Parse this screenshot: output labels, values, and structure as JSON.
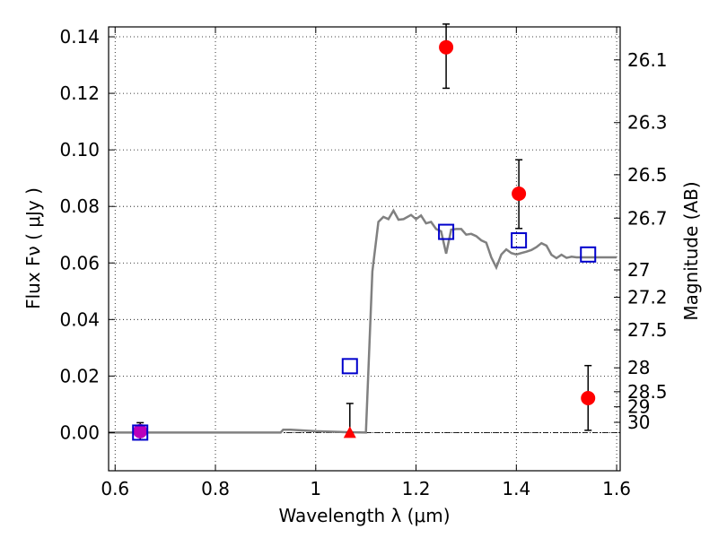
{
  "chart_data": {
    "type": "scatter",
    "title": "",
    "xlabel": "Wavelength  λ (μm)",
    "ylabel": "Flux  Fν  ( μJy )",
    "y2label": "Magnitude (AB)",
    "xlim": [
      0.587,
      1.607
    ],
    "ylim": [
      -0.0135,
      0.1435
    ],
    "grid": true,
    "x_ticks": [
      {
        "value": 0.6,
        "label": "0.6"
      },
      {
        "value": 0.8,
        "label": "0.8"
      },
      {
        "value": 1.0,
        "label": "1"
      },
      {
        "value": 1.2,
        "label": "1.2"
      },
      {
        "value": 1.4,
        "label": "1.4"
      },
      {
        "value": 1.6,
        "label": "1.6"
      }
    ],
    "y_ticks": [
      {
        "value": 0.0,
        "label": "0.00"
      },
      {
        "value": 0.02,
        "label": "0.02"
      },
      {
        "value": 0.04,
        "label": "0.04"
      },
      {
        "value": 0.06,
        "label": "0.06"
      },
      {
        "value": 0.08,
        "label": "0.08"
      },
      {
        "value": 0.1,
        "label": "0.10"
      },
      {
        "value": 0.12,
        "label": "0.12"
      },
      {
        "value": 0.14,
        "label": "0.14"
      }
    ],
    "y2_ticks": [
      {
        "value": 26.1,
        "label": "26.1"
      },
      {
        "value": 26.3,
        "label": "26.3"
      },
      {
        "value": 26.5,
        "label": "26.5"
      },
      {
        "value": 26.7,
        "label": "26.7"
      },
      {
        "value": 27.0,
        "label": "27"
      },
      {
        "value": 27.2,
        "label": "27.2"
      },
      {
        "value": 27.5,
        "label": "27.5"
      },
      {
        "value": 28.0,
        "label": "28"
      },
      {
        "value": 28.5,
        "label": "28.5"
      },
      {
        "value": 29.0,
        "label": "29"
      },
      {
        "value": 30.0,
        "label": "30"
      }
    ],
    "model_curve": {
      "color": "#808080",
      "x": [
        0.587,
        0.93,
        0.935,
        0.95,
        1.0,
        1.05,
        1.1,
        1.113,
        1.125,
        1.135,
        1.145,
        1.155,
        1.165,
        1.175,
        1.19,
        1.2,
        1.21,
        1.22,
        1.23,
        1.24,
        1.25,
        1.26,
        1.27,
        1.28,
        1.29,
        1.3,
        1.31,
        1.32,
        1.33,
        1.34,
        1.35,
        1.36,
        1.37,
        1.38,
        1.39,
        1.4,
        1.41,
        1.42,
        1.43,
        1.44,
        1.45,
        1.46,
        1.47,
        1.48,
        1.49,
        1.5,
        1.51,
        1.52,
        1.53,
        1.54,
        1.55,
        1.56,
        1.57,
        1.58,
        1.59,
        1.6
      ],
      "y": [
        0.0,
        0.0,
        0.001,
        0.001,
        0.0005,
        0.0002,
        0.0,
        0.057,
        0.0745,
        0.0763,
        0.0755,
        0.0785,
        0.0753,
        0.0755,
        0.077,
        0.0755,
        0.0768,
        0.074,
        0.0745,
        0.072,
        0.0712,
        0.0633,
        0.0718,
        0.072,
        0.072,
        0.07,
        0.0703,
        0.0695,
        0.068,
        0.0672,
        0.062,
        0.0584,
        0.063,
        0.0648,
        0.0635,
        0.063,
        0.0635,
        0.064,
        0.0646,
        0.0656,
        0.067,
        0.0661,
        0.0629,
        0.0617,
        0.0629,
        0.0618,
        0.0622,
        0.062,
        0.062,
        0.062,
        0.062,
        0.062,
        0.062,
        0.062,
        0.062,
        0.062
      ]
    },
    "series": [
      {
        "marker": "square",
        "color": "#0000cc",
        "points": [
          {
            "x": 0.65,
            "y": 0.0
          },
          {
            "x": 1.068,
            "y": 0.0235
          },
          {
            "x": 1.26,
            "y": 0.071
          },
          {
            "x": 1.405,
            "y": 0.068
          },
          {
            "x": 1.543,
            "y": 0.063
          }
        ]
      },
      {
        "marker": "circle",
        "color": "#ff0000",
        "points": [
          {
            "x": 1.26,
            "y": 0.1363,
            "err_low": 0.1218,
            "err_high": 0.1445
          },
          {
            "x": 1.405,
            "y": 0.0845,
            "err_low": 0.0722,
            "err_high": 0.0965
          },
          {
            "x": 1.543,
            "y": 0.0122,
            "err_low": 0.0008,
            "err_high": 0.0237
          }
        ]
      },
      {
        "marker": "circle",
        "color": "#bb00bb",
        "points": [
          {
            "x": 0.65,
            "y": 0.0005,
            "err_low": -0.0025,
            "err_high": 0.0035
          }
        ]
      },
      {
        "marker": "triangle",
        "color": "#ff0000",
        "points": [
          {
            "x": 1.068,
            "y": 0.0,
            "err_low": 0.0,
            "err_high": 0.0103
          }
        ]
      }
    ]
  }
}
